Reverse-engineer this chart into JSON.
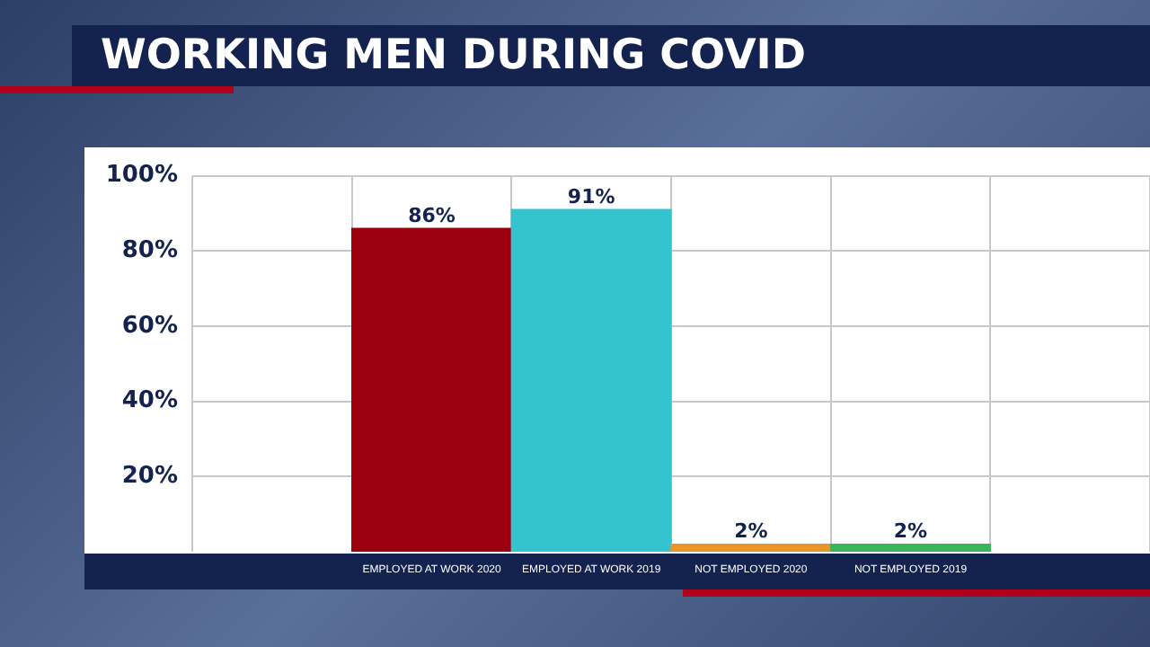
{
  "chart_data": {
    "type": "bar",
    "title": "WORKING MEN DURING COVID",
    "categories": [
      null,
      "EMPLOYED AT WORK 2020",
      "EMPLOYED AT WORK 2019",
      "NOT EMPLOYED 2020",
      "NOT EMPLOYED 2019",
      null
    ],
    "values": [
      null,
      86,
      91,
      2,
      2,
      null
    ],
    "colors": [
      "#9b0010",
      "#9b0010",
      "#33c4d0",
      "#e8962a",
      "#3cb55a",
      "#3cb55a"
    ],
    "value_labels": [
      null,
      "86%",
      "91%",
      "2%",
      "2%",
      null
    ],
    "ylim": [
      0,
      100
    ],
    "yticks": [
      {
        "value": 20,
        "label": "20%"
      },
      {
        "value": 40,
        "label": "40%"
      },
      {
        "value": 60,
        "label": "60%"
      },
      {
        "value": 80,
        "label": "80%"
      },
      {
        "value": 100,
        "label": "100%"
      }
    ],
    "grid": true,
    "legend": false
  }
}
